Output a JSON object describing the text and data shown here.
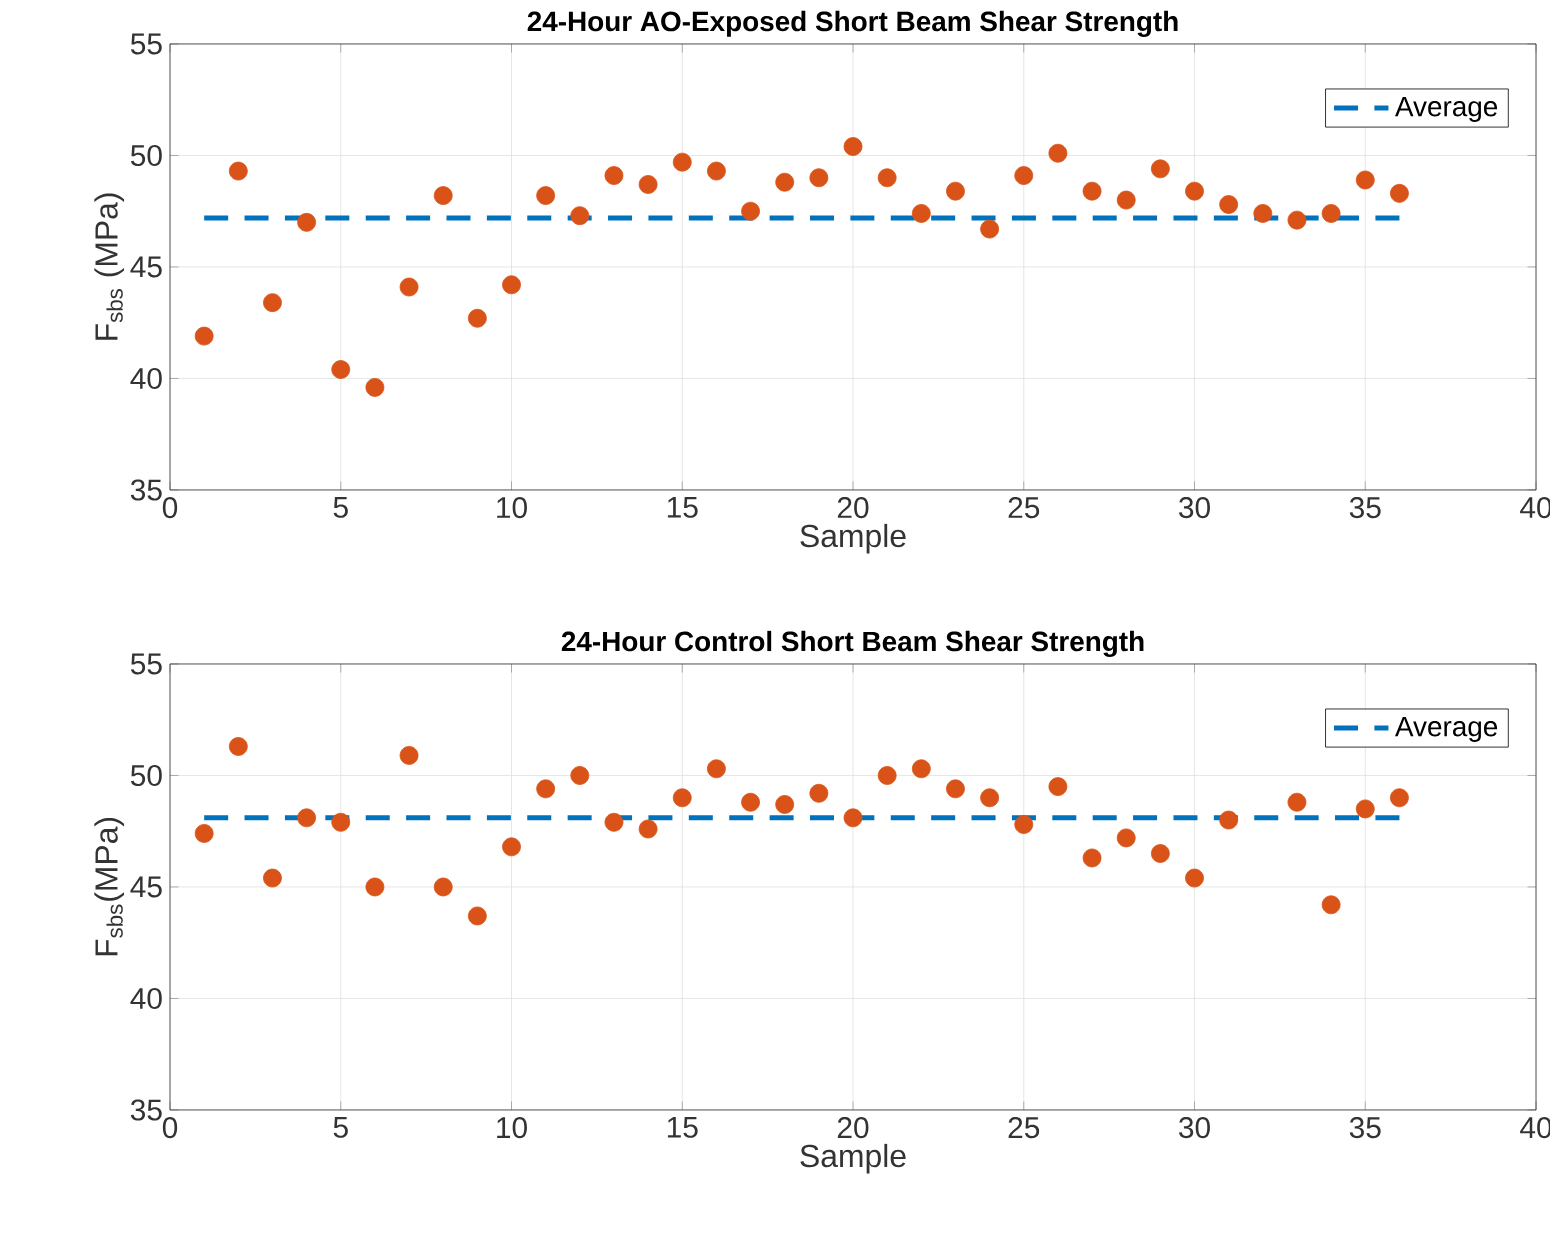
{
  "chart_data": [
    {
      "type": "scatter",
      "title": "24-Hour AO-Exposed Short Beam Shear Strength",
      "xlabel": "Sample",
      "ylabel": "F$_{sbs}$ (MPa)",
      "xlim": [
        0,
        40
      ],
      "xticks": [
        0,
        5,
        10,
        15,
        20,
        25,
        30,
        35,
        40
      ],
      "ylim": [
        35,
        55
      ],
      "yticks": [
        35,
        40,
        45,
        50,
        55
      ],
      "grid": true,
      "legend": "top right",
      "series": [
        {
          "marker": "circle",
          "color": "#d95319",
          "x": [
            1,
            2,
            3,
            4,
            5,
            6,
            7,
            8,
            9,
            10,
            11,
            12,
            13,
            14,
            15,
            16,
            17,
            18,
            19,
            20,
            21,
            22,
            23,
            24,
            25,
            26,
            27,
            28,
            29,
            30,
            31,
            32,
            33,
            34,
            35,
            36
          ],
          "values": [
            41.9,
            49.3,
            43.4,
            47.0,
            40.4,
            39.6,
            44.1,
            48.2,
            42.7,
            44.2,
            48.2,
            47.3,
            49.1,
            48.7,
            49.7,
            49.3,
            47.5,
            48.8,
            49.0,
            50.4,
            49.0,
            47.4,
            48.4,
            46.7,
            49.1,
            50.1,
            48.4,
            48.0,
            49.4,
            48.4,
            47.8,
            47.4,
            47.1,
            47.4,
            48.9,
            48.3
          ]
        },
        {
          "type": "line",
          "name": "Average",
          "color": "#0072bd",
          "line_style": "dashed",
          "x": [
            1,
            36
          ],
          "values": [
            47.2,
            47.2
          ]
        }
      ]
    },
    {
      "type": "scatter",
      "title": "24-Hour Control Short Beam Shear Strength",
      "xlabel": "Sample",
      "ylabel": "F$_{sbs}$(MPa)",
      "xlim": [
        0,
        40
      ],
      "xticks": [
        0,
        5,
        10,
        15,
        20,
        25,
        30,
        35,
        40
      ],
      "ylim": [
        35,
        55
      ],
      "yticks": [
        35,
        40,
        45,
        50,
        55
      ],
      "grid": true,
      "legend": "top right",
      "series": [
        {
          "marker": "circle",
          "color": "#d95319",
          "x": [
            1,
            2,
            3,
            4,
            5,
            6,
            7,
            8,
            9,
            10,
            11,
            12,
            13,
            14,
            15,
            16,
            17,
            18,
            19,
            20,
            21,
            22,
            23,
            24,
            25,
            26,
            27,
            28,
            29,
            30,
            31,
            32,
            33,
            34,
            35,
            36
          ],
          "values": [
            47.4,
            51.3,
            45.4,
            48.1,
            47.9,
            45.0,
            50.9,
            45.0,
            43.7,
            46.8,
            49.4,
            50.0,
            47.9,
            47.6,
            49.0,
            50.3,
            48.8,
            48.7,
            49.2,
            48.1,
            50.0,
            50.3,
            49.4,
            49.0,
            47.8,
            49.5,
            46.3,
            47.2,
            46.5,
            45.4,
            48.0,
            null,
            48.8,
            44.2,
            48.5,
            49.0
          ]
        },
        {
          "type": "line",
          "name": "Average",
          "color": "#0072bd",
          "line_style": "dashed",
          "x": [
            1,
            36
          ],
          "values": [
            48.1,
            48.1
          ]
        }
      ]
    }
  ]
}
